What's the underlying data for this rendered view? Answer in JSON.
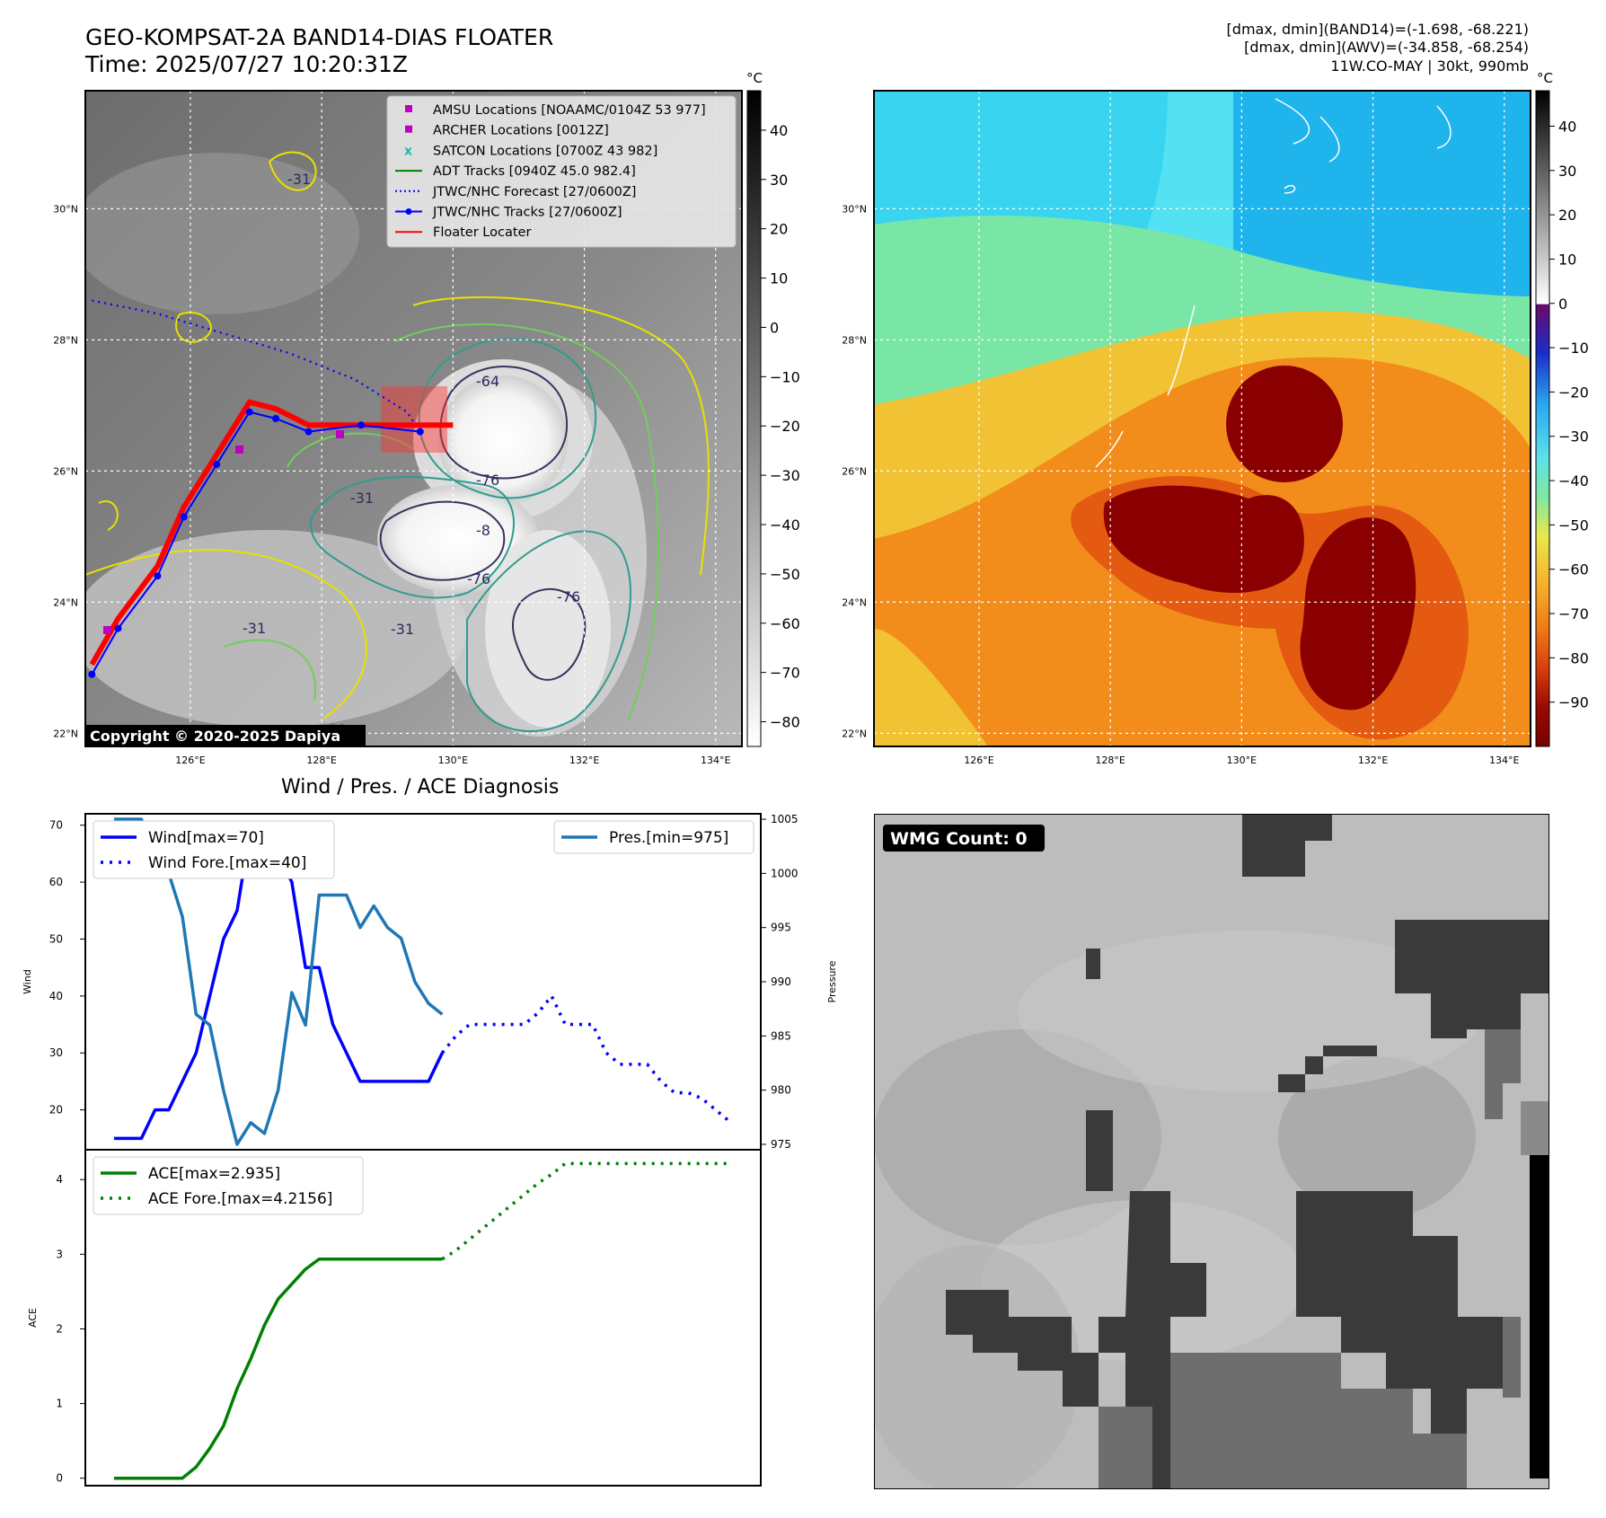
{
  "header": {
    "title_line1": "GEO-KOMPSAT-2A BAND14-DIAS FLOATER",
    "title_line2": "Time: 2025/07/27 10:20:31Z",
    "info_line1": "[dmax, dmin](BAND14)=(-1.698, -68.221)",
    "info_line2": "[dmax, dmin](AWV)=(-34.858, -68.254)",
    "info_line3": "11W.CO-MAY | 30kt, 990mb"
  },
  "map": {
    "lat_labels": [
      "30°N",
      "28°N",
      "26°N",
      "24°N",
      "22°N"
    ],
    "lon_labels": [
      "126°E",
      "128°E",
      "130°E",
      "132°E",
      "134°E"
    ],
    "lat_values": [
      30,
      28,
      26,
      24,
      22
    ],
    "lon_values": [
      126,
      128,
      130,
      132,
      134
    ],
    "copyright": "Copyright © 2020-2025 Dapiya",
    "contour_labels": [
      "-31",
      "-64",
      "-76",
      "-76",
      "-76",
      "-31",
      "-31",
      "-31",
      "-31",
      "-8"
    ],
    "legend": [
      {
        "label": "AMSU Locations [NOAAMC/0104Z 53 977]",
        "symbol": "square",
        "color": "#c000c0"
      },
      {
        "label": "ARCHER Locations [0012Z]",
        "symbol": "square",
        "color": "#c000c0"
      },
      {
        "label": "SATCON Locations [0700Z 43 982]",
        "symbol": "x",
        "color": "#17b8b0"
      },
      {
        "label": "ADT Tracks [0940Z 45.0 982.4]",
        "symbol": "line",
        "color": "#008000"
      },
      {
        "label": "JTWC/NHC Forecast [27/0600Z]",
        "symbol": "dotted",
        "color": "#0000ff"
      },
      {
        "label": "JTWC/NHC Tracks [27/0600Z]",
        "symbol": "line-dot",
        "color": "#0000ff"
      },
      {
        "label": "Floater Locater",
        "symbol": "line",
        "color": "#ff0000"
      }
    ],
    "track_points": [
      [
        124.5,
        22.9
      ],
      [
        124.9,
        23.6
      ],
      [
        125.5,
        24.4
      ],
      [
        125.9,
        25.3
      ],
      [
        126.4,
        26.1
      ],
      [
        126.9,
        26.9
      ],
      [
        127.3,
        26.8
      ],
      [
        127.8,
        26.6
      ],
      [
        128.6,
        26.7
      ],
      [
        129.5,
        26.6
      ]
    ],
    "forecast_track": [
      [
        124.5,
        28.6
      ],
      [
        125.5,
        28.4
      ],
      [
        126.5,
        28.1
      ],
      [
        127.5,
        27.8
      ],
      [
        128.5,
        27.4
      ],
      [
        129.3,
        26.9
      ],
      [
        129.5,
        26.6
      ]
    ]
  },
  "colorbar_gray": {
    "unit": "°C",
    "ticks": [
      "40",
      "30",
      "20",
      "10",
      "0",
      "−10",
      "−20",
      "−30",
      "−40",
      "−50",
      "−60",
      "−70",
      "−80"
    ]
  },
  "colorbar_color": {
    "unit": "°C",
    "ticks": [
      "40",
      "30",
      "20",
      "10",
      "0",
      "−10",
      "−20",
      "−30",
      "−40",
      "−50",
      "−60",
      "−70",
      "−80",
      "−90"
    ]
  },
  "diagnosis": {
    "title": "Wind / Pres. / ACE Diagnosis",
    "wind_ylabel": "Wind",
    "pres_ylabel": "Pressure",
    "ace_ylabel": "ACE",
    "wind_ticks": [
      "70",
      "60",
      "50",
      "40",
      "30",
      "20"
    ],
    "pres_ticks": [
      "1005",
      "1000",
      "995",
      "990",
      "985",
      "980",
      "975"
    ],
    "ace_ticks": [
      "4",
      "3",
      "2",
      "1",
      "0"
    ],
    "legend_wind": "Wind[max=70]",
    "legend_wind_fore": "Wind Fore.[max=40]",
    "legend_pres": "Pres.[min=975]",
    "legend_ace": "ACE[max=2.935]",
    "legend_ace_fore": "ACE Fore.[max=4.2156]",
    "wmg": "WMG Count: 0"
  },
  "chart_data": [
    {
      "type": "line",
      "name": "wind-pressure",
      "x": [
        0,
        1,
        2,
        3,
        4,
        5,
        6,
        7,
        8,
        9,
        10,
        11,
        12,
        13,
        14,
        15,
        16,
        17,
        18,
        19,
        20,
        21,
        22,
        23,
        24
      ],
      "series": [
        {
          "name": "Wind[max=70]",
          "axis": "wind",
          "x": [
            0,
            1,
            2,
            3,
            4,
            5,
            6,
            7,
            8,
            9,
            10,
            11,
            12,
            13,
            14,
            15,
            16,
            17,
            18,
            19,
            20,
            21,
            22,
            23,
            24
          ],
          "values": [
            15,
            15,
            15,
            20,
            20,
            25,
            30,
            40,
            50,
            55,
            70,
            65,
            65,
            60,
            45,
            45,
            35,
            30,
            25,
            25,
            25,
            25,
            25,
            25,
            30
          ]
        },
        {
          "name": "Wind Fore.[max=40]",
          "axis": "wind",
          "x": [
            24,
            25,
            26,
            27,
            28,
            29,
            30,
            31,
            32,
            33,
            34,
            35,
            36,
            37,
            38,
            39,
            40,
            41,
            42,
            43,
            44,
            45
          ],
          "values": [
            30,
            33,
            35,
            35,
            35,
            35,
            35,
            37,
            40,
            35,
            35,
            35,
            30,
            28,
            28,
            28,
            25,
            23,
            23,
            22,
            20,
            18
          ]
        },
        {
          "name": "Pres.[min=975]",
          "axis": "pressure",
          "x": [
            0,
            1,
            2,
            3,
            4,
            5,
            6,
            7,
            8,
            9,
            10,
            11,
            12,
            13,
            14,
            15,
            16,
            17,
            18,
            19,
            20,
            21,
            22,
            23,
            24
          ],
          "values": [
            1005,
            1005,
            1005,
            1002,
            1000,
            996,
            987,
            986,
            980,
            975,
            977,
            976,
            980,
            989,
            986,
            998,
            998,
            998,
            995,
            997,
            995,
            994,
            990,
            988,
            987
          ]
        }
      ],
      "wind_ylim": [
        13,
        72
      ],
      "pressure_ylim": [
        974.5,
        1005.5
      ]
    },
    {
      "type": "line",
      "name": "ace",
      "series": [
        {
          "name": "ACE[max=2.935]",
          "x": [
            0,
            1,
            2,
            3,
            4,
            5,
            6,
            7,
            8,
            9,
            10,
            11,
            12,
            13,
            14,
            15,
            16,
            17,
            18,
            19,
            20,
            21,
            22,
            23,
            24
          ],
          "values": [
            0,
            0,
            0,
            0,
            0,
            0,
            0.15,
            0.4,
            0.7,
            1.2,
            1.6,
            2.05,
            2.4,
            2.6,
            2.8,
            2.935,
            2.935,
            2.935,
            2.935,
            2.935,
            2.935,
            2.935,
            2.935,
            2.935,
            2.935
          ]
        },
        {
          "name": "ACE Fore.[max=4.2156]",
          "x": [
            24,
            25,
            26,
            27,
            28,
            29,
            30,
            31,
            32,
            33,
            34,
            35,
            36,
            37,
            38,
            39,
            40,
            41,
            42,
            43,
            44,
            45
          ],
          "values": [
            2.935,
            3.05,
            3.2,
            3.35,
            3.5,
            3.65,
            3.8,
            3.95,
            4.07,
            4.2156,
            4.2156,
            4.2156,
            4.2156,
            4.2156,
            4.2156,
            4.2156,
            4.2156,
            4.2156,
            4.2156,
            4.2156,
            4.2156,
            4.2156
          ]
        }
      ],
      "ylim": [
        -0.1,
        4.4
      ]
    }
  ]
}
